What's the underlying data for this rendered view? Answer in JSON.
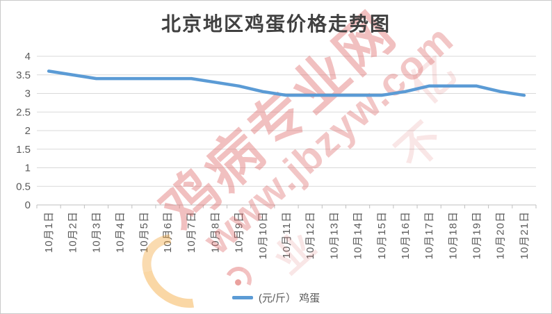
{
  "title": "北京地区鸡蛋价格走势图",
  "chart_data": {
    "type": "line",
    "title": "北京地区鸡蛋价格走势图",
    "categories": [
      "10月1日",
      "10月2日",
      "10月3日",
      "10月4日",
      "10月5日",
      "10月6日",
      "10月7日",
      "10月8日",
      "10月9日",
      "10月10日",
      "10月11日",
      "10月12日",
      "10月13日",
      "10月14日",
      "10月15日",
      "10月16日",
      "10月17日",
      "10月18日",
      "10月19日",
      "10月20日",
      "10月21日"
    ],
    "series": [
      {
        "name": "(元/斤） 鸡蛋",
        "color": "#5B9BD5",
        "values": [
          3.6,
          3.5,
          3.4,
          3.4,
          3.4,
          3.4,
          3.4,
          3.3,
          3.2,
          3.05,
          2.95,
          2.95,
          2.95,
          2.95,
          2.95,
          3.05,
          3.2,
          3.2,
          3.2,
          3.05,
          2.95
        ]
      }
    ],
    "xlabel": "",
    "ylabel": "",
    "ylim": [
      0,
      4
    ],
    "yticks": [
      0,
      0.5,
      1,
      1.5,
      2,
      2.5,
      3,
      3.5,
      4
    ],
    "grid": true,
    "legend_position": "bottom",
    "colors": {
      "gridline": "#D9D9D9",
      "axis": "#BFBFBF",
      "tick_label": "#595959"
    }
  },
  "legend": {
    "label": "(元/斤） 鸡蛋",
    "line_color": "#5B9BD5"
  },
  "watermark": {
    "site_name": "鸡病专业网",
    "site_url": "www.jbzyw.com",
    "color": "#DE6A6A",
    "faint_glyphs": [
      "亿",
      "不",
      "业"
    ]
  }
}
